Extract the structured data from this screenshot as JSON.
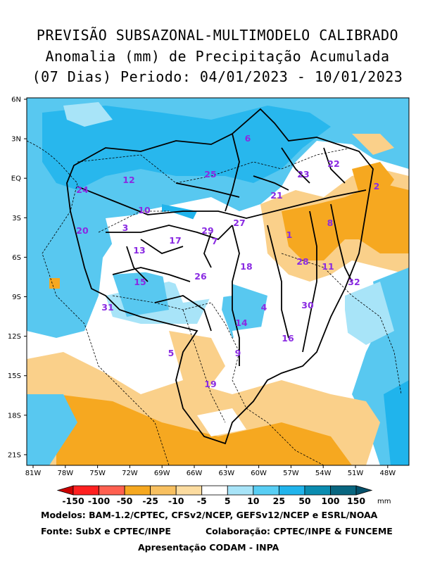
{
  "header": {
    "line1": "PREVISÃO SUBSAZONAL-MULTIMODELO CALIBRADO",
    "line2": "Anomalia (mm) de Precipitação Acumulada",
    "line3": "(07 Dias) Periodo: 04/01/2023 - 10/01/2023"
  },
  "map": {
    "lat_labels": [
      "6N",
      "3N",
      "EQ",
      "3S",
      "6S",
      "9S",
      "12S",
      "15S",
      "18S",
      "21S"
    ],
    "lon_labels": [
      "81W",
      "78W",
      "75W",
      "72W",
      "69W",
      "66W",
      "63W",
      "60W",
      "57W",
      "54W",
      "51W",
      "48W"
    ],
    "basins": [
      "1",
      "2",
      "3",
      "4",
      "5",
      "6",
      "7",
      "8",
      "9",
      "10",
      "11",
      "12",
      "13",
      "14",
      "15",
      "16",
      "17",
      "18",
      "19",
      "20",
      "21",
      "22",
      "23",
      "24",
      "25",
      "26",
      "27",
      "28",
      "29",
      "30",
      "31",
      "32"
    ],
    "colors": {
      "ocean_blue": "#58c8f0",
      "light_blue": "#a8e4f8",
      "cyan_bright": "#20b4ec",
      "orange": "#f6a820",
      "light_orange": "#fad08a"
    }
  },
  "colorbar": {
    "labels": [
      "-150",
      "-100",
      "-50",
      "-25",
      "-10",
      "-5",
      "5",
      "10",
      "25",
      "50",
      "100",
      "150"
    ],
    "unit": "mm",
    "colors": [
      "#cc0000",
      "#ff2020",
      "#ff6050",
      "#f6a820",
      "#f8c060",
      "#fcdca0",
      "#ffffff",
      "#a8e4f8",
      "#58cef4",
      "#20b4ec",
      "#0a8cb0",
      "#086680",
      "#04506a"
    ]
  },
  "footer": {
    "models": "Modelos: BAM-1.2/CPTEC, CFSv2/NCEP, GEFSv12/NCEP e ESRL/NOAA",
    "source": "Fonte: SubX e CPTEC/INPE",
    "collab": "Colaboração: CPTEC/INPE & FUNCEME",
    "presentation": "Apresentação CODAM - INPA"
  }
}
